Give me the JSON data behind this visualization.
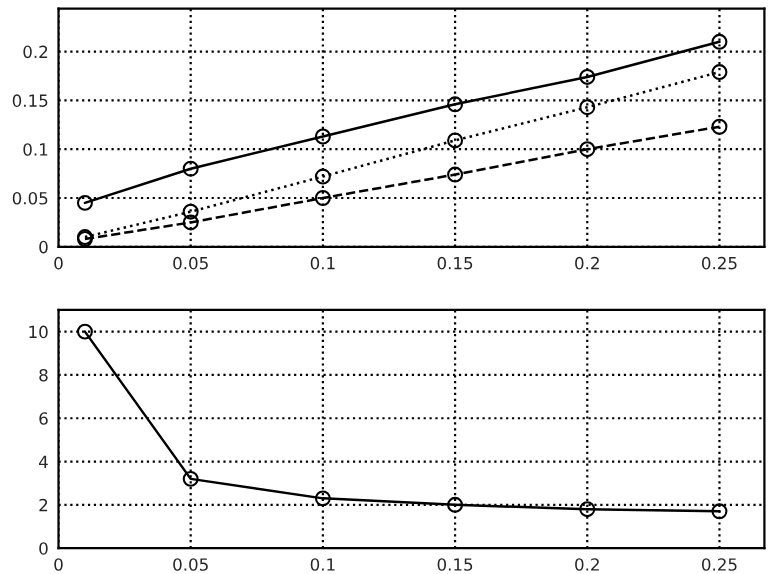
{
  "chart_data": [
    {
      "type": "line",
      "x": [
        0.01,
        0.05,
        0.1,
        0.15,
        0.2,
        0.25
      ],
      "xlim": [
        0,
        0.267
      ],
      "xticks": [
        0,
        0.05,
        0.1,
        0.15,
        0.2,
        0.25
      ],
      "ylim": [
        0,
        0.244
      ],
      "yticks": [
        0,
        0.05,
        0.1,
        0.15,
        0.2
      ],
      "grid": true,
      "marker": "circle",
      "series": [
        {
          "color": "#000000",
          "line_style": "solid",
          "values": [
            0.045,
            0.08,
            0.113,
            0.146,
            0.174,
            0.21
          ]
        },
        {
          "color": "#000000",
          "line_style": "dotted",
          "values": [
            0.01,
            0.036,
            0.072,
            0.109,
            0.143,
            0.179
          ]
        },
        {
          "color": "#000000",
          "line_style": "dashed",
          "values": [
            0.008,
            0.025,
            0.05,
            0.074,
            0.1,
            0.123
          ]
        }
      ]
    },
    {
      "type": "line",
      "x": [
        0.01,
        0.05,
        0.1,
        0.15,
        0.2,
        0.25
      ],
      "xlim": [
        0,
        0.267
      ],
      "xticks": [
        0,
        0.05,
        0.1,
        0.15,
        0.2,
        0.25
      ],
      "ylim": [
        0,
        11
      ],
      "yticks": [
        0,
        2,
        4,
        6,
        8,
        10
      ],
      "grid": true,
      "marker": "circle",
      "series": [
        {
          "color": "#000000",
          "line_style": "solid",
          "values": [
            10,
            3.2,
            2.3,
            2.0,
            1.8,
            1.7
          ]
        }
      ]
    }
  ]
}
